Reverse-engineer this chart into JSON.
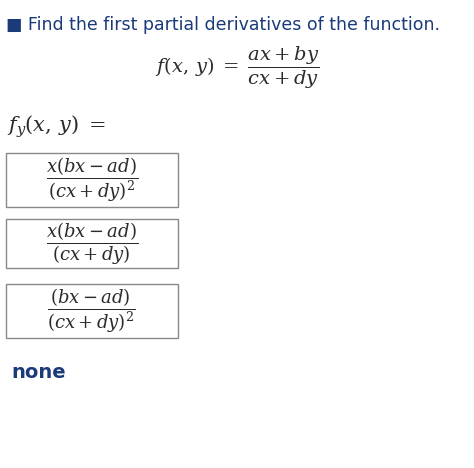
{
  "title_text": "Find the first partial derivatives of the function.",
  "title_color": "#1a3a7a",
  "title_fontsize": 12.5,
  "bg_color": "#ffffff",
  "none_text": "none",
  "none_color": "#1a3a7a",
  "box_edge_color": "#888888",
  "text_color": "#2b2b2b",
  "fig_width": 4.74,
  "fig_height": 4.68,
  "dpi": 100
}
